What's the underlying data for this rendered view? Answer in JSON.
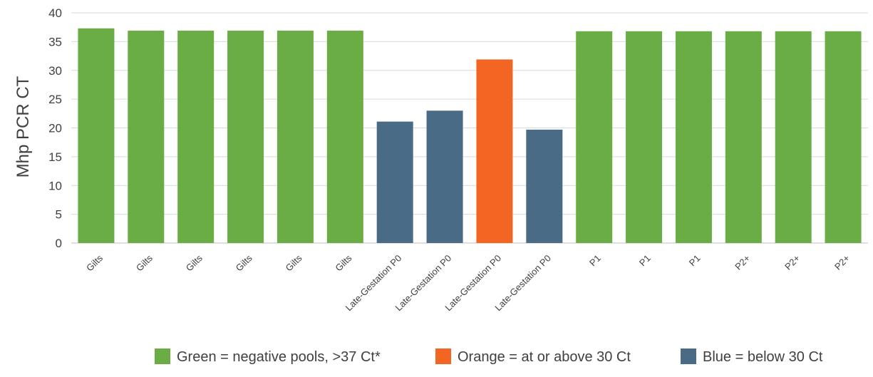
{
  "chart_data": {
    "type": "bar",
    "ylabel": "Mhp PCR CT",
    "xlabel": "",
    "ylim": [
      0,
      40
    ],
    "yticks": [
      0,
      5,
      10,
      15,
      20,
      25,
      30,
      35,
      40
    ],
    "grid": true,
    "legend_position": "bottom",
    "categories": [
      "Gilts",
      "Gilts",
      "Gilts",
      "Gilts",
      "Gilts",
      "Gilts",
      "Late-Gestation P0",
      "Late-Gestation P0",
      "Late-Gestation P0",
      "Late-Gestation P0",
      "P1",
      "P1",
      "P1",
      "P2+",
      "P2+",
      "P2+"
    ],
    "values": [
      37.3,
      36.9,
      36.9,
      36.9,
      36.9,
      36.9,
      21.1,
      23.0,
      31.9,
      19.7,
      36.8,
      36.8,
      36.8,
      36.8,
      36.8,
      36.8
    ],
    "bar_groups": [
      "green",
      "green",
      "green",
      "green",
      "green",
      "green",
      "blue",
      "blue",
      "orange",
      "blue",
      "green",
      "green",
      "green",
      "green",
      "green",
      "green"
    ],
    "colors": {
      "green": "#6aad45",
      "orange": "#f26522",
      "blue": "#4a6b86"
    },
    "legend": [
      {
        "key": "green",
        "label": "Green = negative pools, >37 Ct*"
      },
      {
        "key": "orange",
        "label": "Orange = at or above 30 Ct"
      },
      {
        "key": "blue",
        "label": "Blue = below 30 Ct"
      }
    ]
  }
}
